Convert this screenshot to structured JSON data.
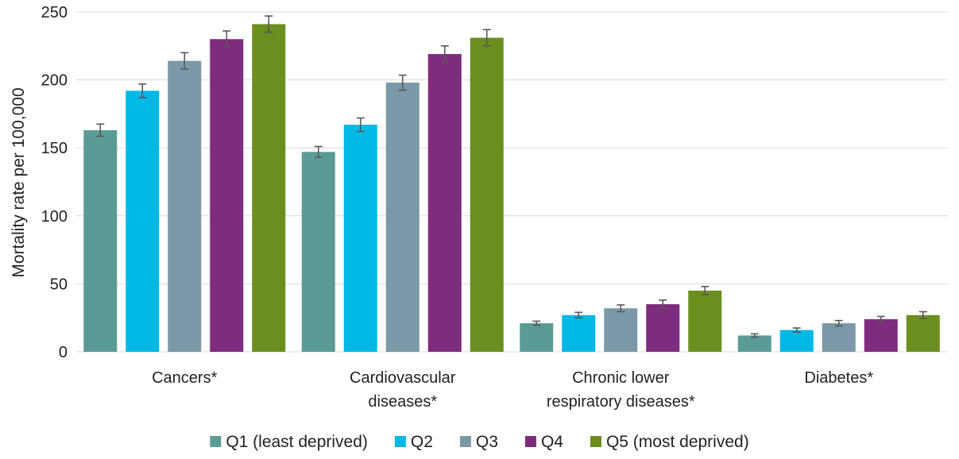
{
  "chart_data": {
    "type": "bar",
    "title": "",
    "xlabel": "",
    "ylabel": "Mortality rate per 100,000",
    "ylim": [
      0,
      250
    ],
    "yticks": [
      0,
      50,
      100,
      150,
      200,
      250
    ],
    "grid": true,
    "legend_position": "bottom",
    "categories": [
      [
        "Cancers*"
      ],
      [
        "Cardiovascular",
        "diseases*"
      ],
      [
        "Chronic lower",
        "respiratory diseases*"
      ],
      [
        "Diabetes*"
      ]
    ],
    "series": [
      {
        "name": "Q1 (least deprived)",
        "color": "#5b9b96",
        "values": [
          163,
          147,
          21,
          12
        ],
        "error": [
          4.5,
          4,
          1.5,
          1.2
        ]
      },
      {
        "name": "Q2",
        "color": "#00b8e6",
        "values": [
          192,
          167,
          27,
          16
        ],
        "error": [
          5,
          5,
          2,
          1.5
        ]
      },
      {
        "name": "Q3",
        "color": "#7b98a8",
        "values": [
          214,
          198,
          32,
          21
        ],
        "error": [
          6,
          5.5,
          2.5,
          2
        ]
      },
      {
        "name": "Q4",
        "color": "#7d2c7e",
        "values": [
          230,
          219,
          35,
          24
        ],
        "error": [
          6,
          6,
          3,
          2
        ]
      },
      {
        "name": "Q5 (most deprived)",
        "color": "#6b8e1f",
        "values": [
          241,
          231,
          45,
          27
        ],
        "error": [
          6,
          6,
          3,
          2.5
        ]
      }
    ]
  }
}
